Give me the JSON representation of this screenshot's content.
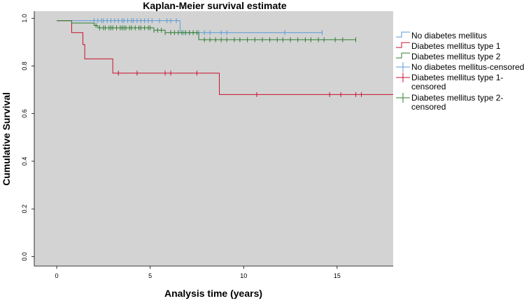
{
  "chart_data": {
    "type": "line",
    "title": "Kaplan-Meier survival estimate",
    "xlabel": "Analysis time (years)",
    "ylabel": "Cumulative Survival",
    "xlim": [
      -1.2,
      18
    ],
    "ylim": [
      -0.04,
      1.03
    ],
    "x_ticks": [
      0,
      5,
      10,
      15
    ],
    "y_ticks": [
      0.0,
      0.2,
      0.4,
      0.6,
      0.8,
      1.0
    ],
    "grid": false,
    "background": "#d3d3d3",
    "legend_position": "right",
    "legend": [
      {
        "label": "No diabetes mellitus",
        "kind": "step",
        "color": "#5b9bd5"
      },
      {
        "label": "Diabetes mellitus type 1",
        "kind": "step",
        "color": "#c8102e"
      },
      {
        "label": "Diabetes mellitus type 2",
        "kind": "step",
        "color": "#2e7d32"
      },
      {
        "label": "No diabetes mellitus-censored",
        "kind": "censor",
        "color": "#5b9bd5"
      },
      {
        "label": "Diabetes mellitus type 1-\ncensored",
        "kind": "censor",
        "color": "#c8102e"
      },
      {
        "label": "Diabetes mellitus type 2-\ncensored",
        "kind": "censor",
        "color": "#2e7d32"
      }
    ],
    "series": [
      {
        "name": "No diabetes mellitus",
        "color": "#5b9bd5",
        "steps": [
          [
            0,
            0.99
          ],
          [
            2.0,
            0.99
          ],
          [
            6.6,
            0.94
          ],
          [
            14.2,
            0.94
          ]
        ],
        "censored": [
          2.0,
          2.2,
          2.4,
          2.5,
          2.7,
          2.9,
          3.1,
          3.3,
          3.5,
          3.6,
          3.8,
          4.0,
          4.1,
          4.3,
          4.5,
          4.7,
          4.9,
          5.1,
          5.5,
          5.9,
          6.1,
          6.4,
          6.8,
          7.1,
          7.6,
          7.9,
          8.2,
          8.8,
          9.1,
          12.2,
          14.2
        ]
      },
      {
        "name": "Diabetes mellitus type 1",
        "color": "#c8102e",
        "steps": [
          [
            0,
            0.99
          ],
          [
            0.8,
            0.94
          ],
          [
            1.4,
            0.89
          ],
          [
            1.5,
            0.83
          ],
          [
            3.0,
            0.77
          ],
          [
            8.7,
            0.68
          ],
          [
            18.0,
            0.68
          ]
        ],
        "censored": [
          3.3,
          4.3,
          5.8,
          6.1,
          7.5,
          10.7,
          14.6,
          15.2,
          16.0,
          16.3
        ]
      },
      {
        "name": "Diabetes mellitus type 2",
        "color": "#2e7d32",
        "steps": [
          [
            0,
            0.99
          ],
          [
            0.8,
            0.98
          ],
          [
            2.0,
            0.97
          ],
          [
            2.2,
            0.96
          ],
          [
            3.2,
            0.96
          ],
          [
            5.2,
            0.95
          ],
          [
            5.8,
            0.94
          ],
          [
            7.6,
            0.91
          ],
          [
            16.0,
            0.91
          ]
        ],
        "censored": [
          2.1,
          2.3,
          2.5,
          2.6,
          2.8,
          2.9,
          3.0,
          3.2,
          3.4,
          3.5,
          3.6,
          3.7,
          3.9,
          4.0,
          4.2,
          4.4,
          4.5,
          4.7,
          4.9,
          5.0,
          5.2,
          5.4,
          5.6,
          5.8,
          6.1,
          6.3,
          6.5,
          6.7,
          6.9,
          7.1,
          7.3,
          7.5,
          7.9,
          8.2,
          8.5,
          8.8,
          9.1,
          9.5,
          9.8,
          10.2,
          10.6,
          11.0,
          11.4,
          11.8,
          12.1,
          12.5,
          12.9,
          13.3,
          13.6,
          14.0,
          14.3,
          14.9,
          15.3,
          16.0
        ]
      }
    ]
  }
}
